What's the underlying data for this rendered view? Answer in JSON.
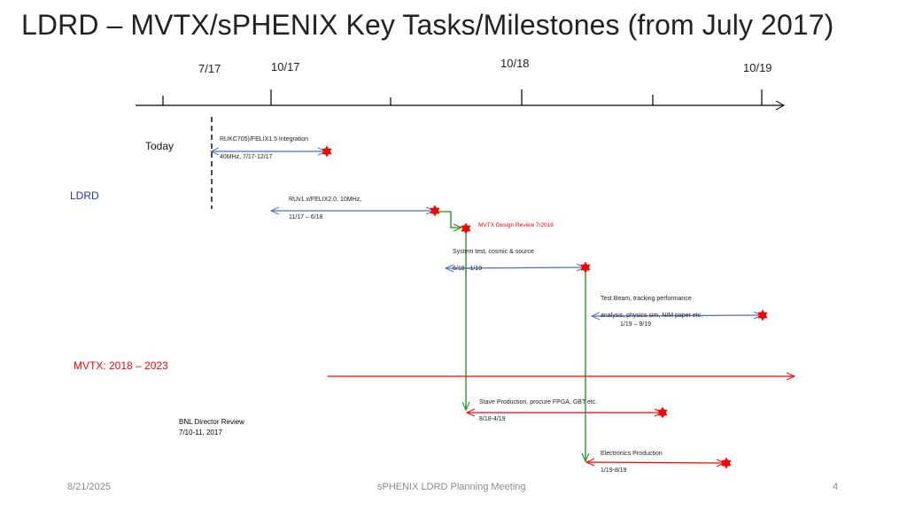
{
  "title": "LDRD – MVTX/sPHENIX Key Tasks/Milestones (from July 2017)",
  "timeline": {
    "ticks": [
      "7/17",
      "10/17",
      "10/18",
      "10/19"
    ]
  },
  "labels": {
    "today": "Today",
    "ldrd": "LDRD",
    "mvtx": "MVTX: 2018 – 2023",
    "bnl_review_line1": "BNL Director Review",
    "bnl_review_line2": "7/10-11, 2017"
  },
  "tasks": [
    {
      "name": "RUKC705)/FELIX1.5 Integration",
      "detail": "40MHz,  7/17-12/17"
    },
    {
      "name": "RUv1.x/FELIX2.0, 10MHz,",
      "detail": "11/17 – 6/18"
    },
    {
      "name": "MVTX Design Review 7/2018",
      "detail": ""
    },
    {
      "name": "System test, cosmic & source",
      "detail": "6/18 –1/19"
    },
    {
      "name": "Test Beam, tracking performance",
      "detail": "analysis, physics sim, NIM paper etc.",
      "detail2": "1/19 – 9/19"
    },
    {
      "name": "Stave Production, procure FPGA, GBT etc.",
      "detail": "8/18-4/19"
    },
    {
      "name": "Electronics Production",
      "detail": "1/19-8/19"
    }
  ],
  "colors": {
    "blue_arrow": "#4472c4",
    "red_arrow": "#ff0000",
    "green_arrow": "#1a8a1a",
    "star": "#ff0000",
    "ldrd_text": "#2233cc",
    "mvtx_text": "#ff0000"
  },
  "footer": {
    "date": "8/21/2025",
    "meeting": "sPHENIX LDRD Planning Meeting",
    "page": "4"
  }
}
